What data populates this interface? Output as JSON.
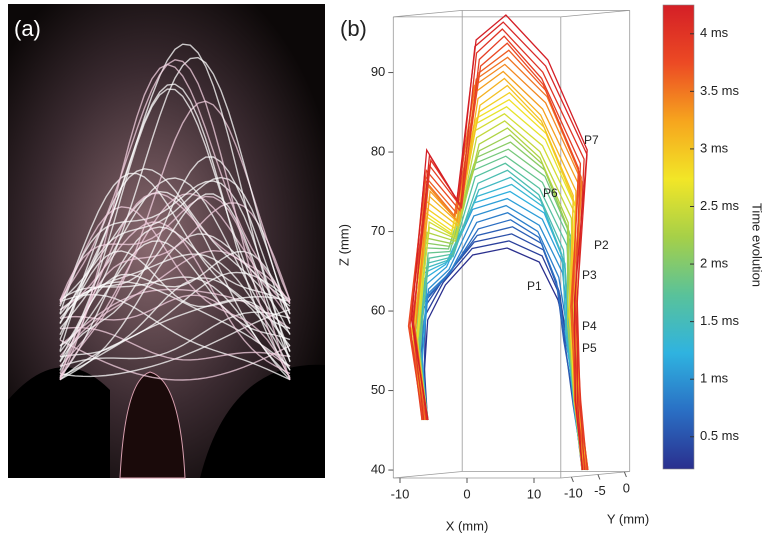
{
  "panel_a": {
    "label": "(a)"
  },
  "chart_data": {
    "type": "line3d",
    "label": "(b)",
    "xlabel": "X (mm)",
    "ylabel": "Y (mm)",
    "zlabel": "Z (mm)",
    "xlim": [
      -11,
      14
    ],
    "xticks": [
      -10,
      0,
      10
    ],
    "ylim": [
      -12,
      1
    ],
    "yticks": [
      -10,
      -5,
      0
    ],
    "zlim": [
      39,
      97
    ],
    "zticks": [
      40,
      50,
      60,
      70,
      80,
      90
    ],
    "annotations": [
      "P1",
      "P2",
      "P3",
      "P4",
      "P5",
      "P6",
      "P7"
    ],
    "colorbar": {
      "label": "Time evolution",
      "lim": [
        0.22,
        4.25
      ],
      "ticks": [
        {
          "value": 0.5,
          "label": "0.5 ms"
        },
        {
          "value": 1,
          "label": "1 ms"
        },
        {
          "value": 1.5,
          "label": "1.5 ms"
        },
        {
          "value": 2,
          "label": "2 ms"
        },
        {
          "value": 2.5,
          "label": "2.5 ms"
        },
        {
          "value": 3,
          "label": "3 ms"
        },
        {
          "value": 3.5,
          "label": "3.5 ms"
        },
        {
          "value": 4,
          "label": "4 ms"
        }
      ],
      "colors": [
        "#2a2f8e",
        "#2a6fc4",
        "#2fb3e0",
        "#59c29a",
        "#a6d048",
        "#f2e627",
        "#f6a51e",
        "#ec4a24",
        "#d41f26"
      ]
    }
  }
}
